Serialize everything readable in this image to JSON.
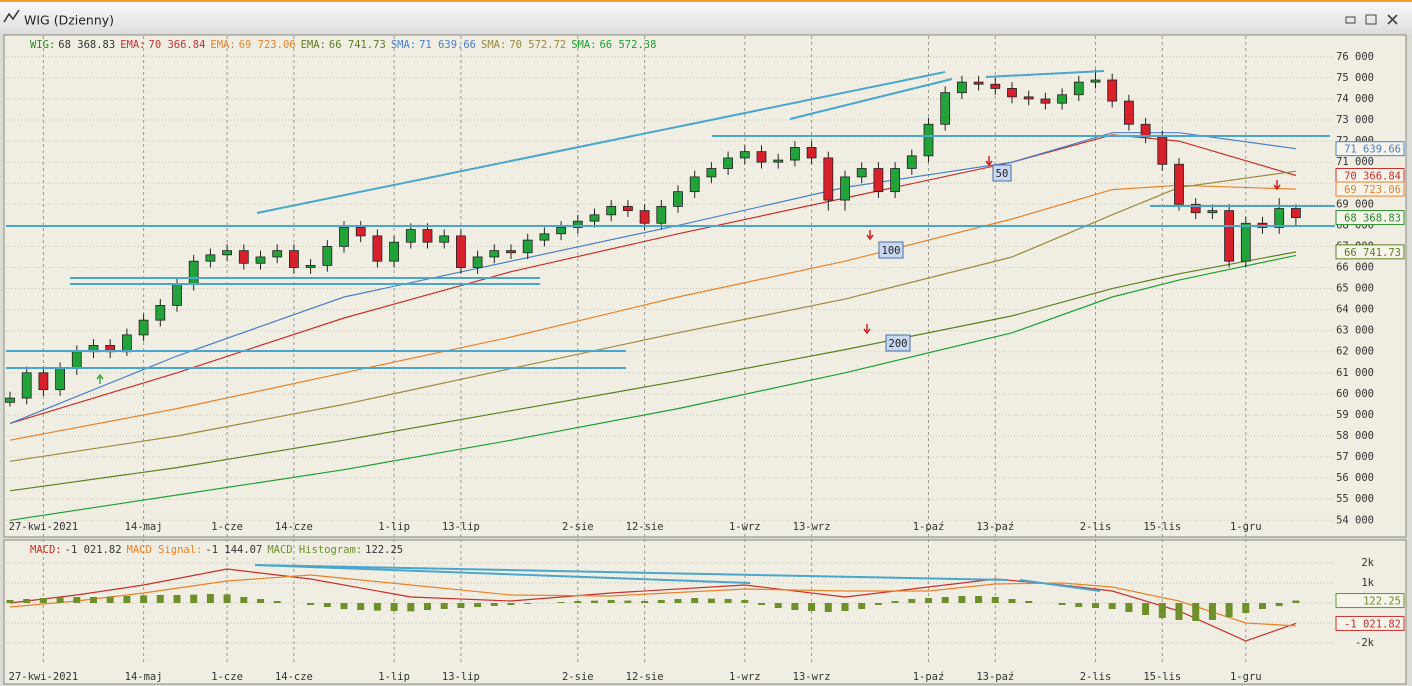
{
  "window": {
    "title": "WIG (Dzienny)"
  },
  "chart_data": [
    {
      "type": "candlestick",
      "name": "WIG",
      "last_label": "68 368.83",
      "value_box": true,
      "color": "#2a8a2a",
      "categories": [
        null,
        null,
        "27-kwi-2021",
        null,
        null,
        null,
        null,
        null,
        "14-maj",
        null,
        null,
        null,
        null,
        "1-cze",
        null,
        null,
        null,
        "14-cze",
        null,
        null,
        null,
        null,
        null,
        "1-lip",
        null,
        null,
        null,
        "13-lip",
        null,
        null,
        null,
        null,
        null,
        null,
        "2-sie",
        null,
        null,
        null,
        "12-sie",
        null,
        null,
        null,
        null,
        null,
        "1-wrz",
        null,
        null,
        null,
        "13-wrz",
        null,
        null,
        null,
        null,
        null,
        null,
        "1-paź",
        null,
        null,
        null,
        "13-paź",
        null,
        null,
        null,
        null,
        null,
        "2-lis",
        null,
        null,
        null,
        "15-lis",
        null,
        null,
        null,
        null,
        "1-gru",
        null,
        null,
        null
      ],
      "open": [
        59600,
        59800,
        61000,
        60200,
        61200,
        62000,
        62300,
        62000,
        62800,
        63500,
        64200,
        65200,
        66300,
        66600,
        66800,
        66200,
        66500,
        66800,
        66000,
        66100,
        67000,
        67900,
        67500,
        66300,
        67200,
        67800,
        67200,
        67500,
        66000,
        66500,
        66800,
        66700,
        67300,
        67600,
        67900,
        68200,
        68500,
        68900,
        68700,
        68100,
        68900,
        69600,
        70300,
        70700,
        71200,
        71500,
        71000,
        71100,
        71700,
        71200,
        69200,
        70300,
        70700,
        69600,
        70700,
        71300,
        72800,
        74300,
        74800,
        74700,
        74500,
        74100,
        74000,
        73800,
        74200,
        74800,
        74900,
        73900,
        72800,
        72200,
        70900,
        69000,
        68600,
        68700,
        66300,
        68100,
        67900,
        68800
      ],
      "high": [
        60100,
        61300,
        61300,
        61500,
        62300,
        62600,
        62600,
        63100,
        63800,
        64500,
        65500,
        66600,
        66900,
        67100,
        67100,
        66800,
        67100,
        67100,
        66400,
        67300,
        68200,
        68200,
        67800,
        67500,
        68100,
        68100,
        67800,
        67800,
        66800,
        67100,
        67100,
        67600,
        67900,
        68200,
        68500,
        68800,
        69200,
        69200,
        69000,
        69200,
        69900,
        70600,
        71000,
        71500,
        71800,
        71800,
        71400,
        72000,
        72000,
        71500,
        70600,
        71000,
        71000,
        71000,
        71600,
        73100,
        74600,
        75100,
        75100,
        75000,
        74800,
        74400,
        74300,
        74500,
        75100,
        75400,
        75200,
        74200,
        73100,
        72500,
        71200,
        69300,
        69000,
        69000,
        68400,
        68400,
        69300,
        69000
      ],
      "low": [
        59400,
        59500,
        59900,
        59900,
        60900,
        61700,
        61700,
        61800,
        62500,
        63200,
        63900,
        64900,
        66000,
        66300,
        65900,
        65900,
        66200,
        65700,
        65700,
        65800,
        66700,
        67200,
        66000,
        66000,
        66900,
        66900,
        66900,
        65700,
        65700,
        66200,
        66400,
        66400,
        67000,
        67300,
        67600,
        67900,
        68200,
        68400,
        67800,
        67800,
        68600,
        69300,
        70000,
        70400,
        70900,
        70700,
        70700,
        70800,
        70900,
        68700,
        68700,
        70000,
        69300,
        69300,
        70400,
        71000,
        72500,
        74000,
        74400,
        74200,
        73800,
        73700,
        73500,
        73500,
        73900,
        74500,
        73600,
        72500,
        71900,
        70600,
        68700,
        68300,
        68300,
        66000,
        66000,
        67600,
        67600,
        68000
      ],
      "close": [
        59800,
        61000,
        60200,
        61200,
        62000,
        62300,
        62000,
        62800,
        63500,
        64200,
        65200,
        66300,
        66600,
        66800,
        66200,
        66500,
        66800,
        66000,
        66100,
        67000,
        67900,
        67500,
        66300,
        67200,
        67800,
        67200,
        67500,
        66000,
        66500,
        66800,
        66700,
        67300,
        67600,
        67900,
        68200,
        68500,
        68900,
        68700,
        68100,
        68900,
        69600,
        70300,
        70700,
        71200,
        71500,
        71000,
        71100,
        71700,
        71200,
        69200,
        70300,
        70700,
        69600,
        70700,
        71300,
        72800,
        74300,
        74800,
        74700,
        74500,
        74100,
        74000,
        73800,
        74200,
        74800,
        74900,
        73900,
        72800,
        72200,
        70900,
        69000,
        68600,
        68700,
        66300,
        68100,
        67900,
        68800,
        68368.83
      ],
      "up_color": "#22a33a",
      "down_color": "#d8202a",
      "series": [
        {
          "name": "EMA",
          "color": "#c8302a",
          "last_label": "70 366.84",
          "value_box": true,
          "x": [
            0,
            10,
            20,
            30,
            40,
            50,
            60,
            66,
            70,
            77
          ],
          "values": [
            58600,
            61000,
            63600,
            65800,
            67600,
            69300,
            71000,
            72300,
            72000,
            70366.84
          ]
        },
        {
          "name": "EMA",
          "color": "#e8822a",
          "last_label": "69 723.06",
          "value_box": true,
          "x": [
            0,
            10,
            20,
            30,
            40,
            50,
            60,
            66,
            70,
            77
          ],
          "values": [
            57800,
            59300,
            61000,
            62700,
            64600,
            66300,
            68300,
            69700,
            69900,
            69723.06
          ]
        },
        {
          "name": "EMA",
          "color": "#5d7f1e",
          "last_label": "66 741.73",
          "value_box": true,
          "x": [
            0,
            10,
            20,
            30,
            40,
            50,
            60,
            66,
            70,
            77
          ],
          "values": [
            55400,
            56500,
            57800,
            59200,
            60600,
            62100,
            63700,
            65000,
            65700,
            66741.73
          ]
        },
        {
          "name": "SMA",
          "color": "#4a80c8",
          "last_label": "71 639.66",
          "value_box": true,
          "x": [
            0,
            10,
            20,
            30,
            40,
            50,
            60,
            66,
            70,
            77
          ],
          "values": [
            58600,
            61800,
            64600,
            66300,
            68000,
            69800,
            71000,
            72400,
            72400,
            71639.66
          ]
        },
        {
          "name": "SMA",
          "color": "#9c8a3c",
          "last_label": "70 572.72",
          "value_box": false,
          "x": [
            0,
            10,
            20,
            30,
            40,
            50,
            60,
            66,
            70,
            77
          ],
          "values": [
            56800,
            58000,
            59500,
            61200,
            62900,
            64500,
            66500,
            68500,
            69800,
            70572.72
          ]
        },
        {
          "name": "SMA",
          "color": "#1ea030",
          "last_label": "66 572.38",
          "value_box": false,
          "x": [
            0,
            10,
            20,
            30,
            40,
            50,
            60,
            66,
            70,
            77
          ],
          "values": [
            54000,
            55200,
            56400,
            57800,
            59300,
            61000,
            62900,
            64600,
            65400,
            66572.38
          ]
        }
      ],
      "ylim": [
        53300,
        76800
      ],
      "yticks": [
        {
          "value": 54000,
          "label": "54 000"
        },
        {
          "value": 55000,
          "label": "55 000"
        },
        {
          "value": 56000,
          "label": "56 000"
        },
        {
          "value": 57000,
          "label": "57 000"
        },
        {
          "value": 58000,
          "label": "58 000"
        },
        {
          "value": 59000,
          "label": "59 000"
        },
        {
          "value": 60000,
          "label": "60 000"
        },
        {
          "value": 61000,
          "label": "61 000"
        },
        {
          "value": 62000,
          "label": "62 000"
        },
        {
          "value": 63000,
          "label": "63 000"
        },
        {
          "value": 64000,
          "label": "64 000"
        },
        {
          "value": 65000,
          "label": "65 000"
        },
        {
          "value": 66000,
          "label": "66 000"
        },
        {
          "value": 67000,
          "label": "67 000"
        },
        {
          "value": 68000,
          "label": "68 000"
        },
        {
          "value": 69000,
          "label": "69 000"
        },
        {
          "value": 70000,
          "label": "70 000"
        },
        {
          "value": 71000,
          "label": "71 000"
        },
        {
          "value": 72000,
          "label": "72 000"
        },
        {
          "value": 73000,
          "label": "73 000"
        },
        {
          "value": 74000,
          "label": "74 000"
        },
        {
          "value": 75000,
          "label": "75 000"
        },
        {
          "value": 76000,
          "label": "76 000"
        }
      ],
      "grid": true,
      "annotations": [
        {
          "text": "50"
        },
        {
          "text": "100"
        },
        {
          "text": "200"
        }
      ]
    },
    {
      "type": "macd",
      "categories": [
        null,
        null,
        "27-kwi-2021",
        null,
        null,
        null,
        null,
        null,
        "14-maj",
        null,
        null,
        null,
        null,
        "1-cze",
        null,
        null,
        null,
        "14-cze",
        null,
        null,
        null,
        null,
        null,
        "1-lip",
        null,
        null,
        null,
        "13-lip",
        null,
        null,
        null,
        null,
        null,
        null,
        "2-sie",
        null,
        null,
        null,
        "12-sie",
        null,
        null,
        null,
        null,
        null,
        "1-wrz",
        null,
        null,
        null,
        "13-wrz",
        null,
        null,
        null,
        null,
        null,
        null,
        "1-paź",
        null,
        null,
        null,
        "13-paź",
        null,
        null,
        null,
        null,
        null,
        "2-lis",
        null,
        null,
        null,
        "15-lis",
        null,
        null,
        null,
        null,
        "1-gru",
        null,
        null,
        null
      ],
      "series": [
        {
          "name": "MACD",
          "type": "line",
          "color": "#c8302a",
          "last_label": "-1 021.82",
          "value_box": true,
          "x": [
            0,
            4,
            8,
            13,
            18,
            24,
            30,
            36,
            44,
            50,
            55,
            59,
            63,
            66,
            70,
            74,
            77
          ],
          "values": [
            0,
            400,
            900,
            1700,
            1200,
            300,
            100,
            500,
            900,
            300,
            800,
            1200,
            900,
            600,
            -400,
            -1900,
            -1021.82
          ]
        },
        {
          "name": "MACD Signal",
          "type": "line",
          "color": "#e8822a",
          "last_label": "-1 144.07",
          "value_box": false,
          "x": [
            0,
            4,
            8,
            13,
            18,
            24,
            30,
            36,
            44,
            50,
            55,
            59,
            63,
            66,
            70,
            74,
            77
          ],
          "values": [
            -200,
            100,
            500,
            1100,
            1400,
            900,
            400,
            350,
            700,
            600,
            600,
            950,
            1000,
            800,
            100,
            -1000,
            -1144.07
          ]
        },
        {
          "name": "MACD Histogram",
          "type": "bar",
          "color": "#6f8f2a",
          "last_label": "122.25",
          "value_box": true,
          "values": [
            150,
            200,
            250,
            280,
            300,
            300,
            320,
            350,
            380,
            400,
            400,
            420,
            450,
            430,
            300,
            200,
            100,
            0,
            -100,
            -200,
            -300,
            -350,
            -380,
            -400,
            -420,
            -350,
            -300,
            -250,
            -200,
            -150,
            -100,
            -50,
            0,
            50,
            100,
            120,
            150,
            120,
            100,
            150,
            200,
            250,
            220,
            200,
            150,
            -100,
            -250,
            -350,
            -400,
            -450,
            -400,
            -300,
            -100,
            100,
            200,
            250,
            300,
            350,
            350,
            300,
            200,
            100,
            0,
            -100,
            -200,
            -250,
            -300,
            -450,
            -600,
            -750,
            -850,
            -900,
            -850,
            -700,
            -500,
            -300,
            -150,
            122.25
          ]
        }
      ],
      "ylim": [
        -3000,
        3000
      ],
      "yticks": [
        {
          "value": 2000,
          "label": "2k"
        },
        {
          "value": 1000,
          "label": "1k"
        },
        {
          "value": 0,
          "label": "0.0k"
        },
        {
          "value": -1000,
          "label": "-1k"
        },
        {
          "value": -2000,
          "label": "-2k"
        }
      ],
      "grid": true
    }
  ]
}
